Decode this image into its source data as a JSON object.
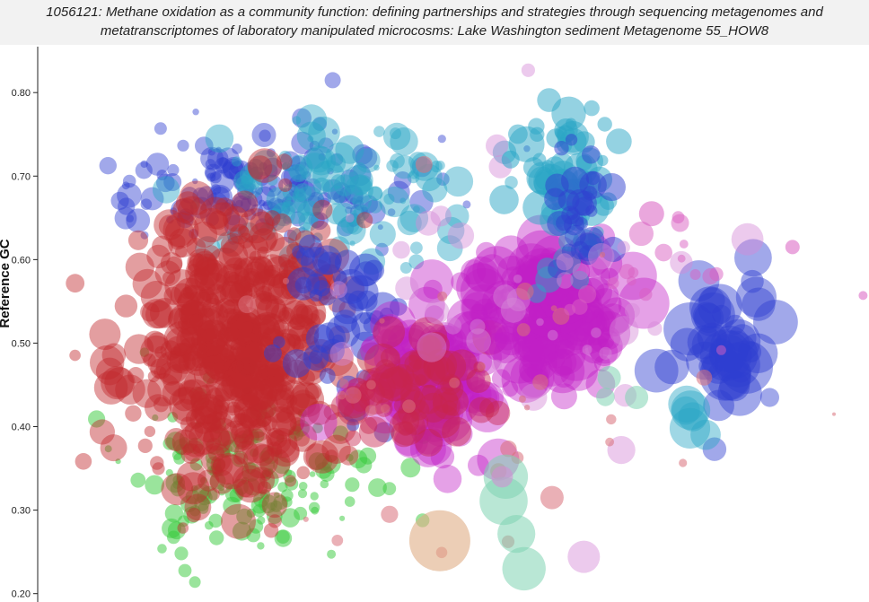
{
  "title": {
    "line1": "1056121: Methane oxidation as a community function: defining partnerships and strategies through sequencing metagenomes and",
    "line2": "metatranscriptomes of laboratory manipulated microcosms: Lake Washington sediment Metagenome 55_HOW8"
  },
  "chart_data": {
    "type": "scatter",
    "title": "1056121: Methane oxidation as a community function: defining partnerships and strategies through sequencing metagenomes and metatranscriptomes of laboratory manipulated microcosms: Lake Washington sediment Metagenome 55_HOW8",
    "xlabel": "",
    "ylabel": "Reference GC",
    "ylim": [
      0.19,
      0.855
    ],
    "yticks": [
      0.2,
      0.3,
      0.4,
      0.5,
      0.6,
      0.7,
      0.8
    ],
    "ytick_labels": [
      "0.20",
      "0.30",
      "0.40",
      "0.50",
      "0.60",
      "0.70",
      "0.80"
    ],
    "xlim": [
      0,
      100
    ],
    "grid": false,
    "colors": {
      "red": "#c0272d",
      "green": "#35c93a",
      "blue": "#2f3fd0",
      "teal": "#2aa6c6",
      "magenta": "#c21fc6",
      "crimson": "#c7264d",
      "pink": "#d58ad6",
      "seafoam": "#7fd4b3",
      "peach": "#e0ad86",
      "rose": "#d8707a",
      "orchid": "#d95fc1"
    },
    "clusters": [
      {
        "color": "green",
        "x": 26,
        "y": 0.34,
        "sx": 7,
        "sy": 0.045,
        "n": 160,
        "r": [
          3,
          11
        ],
        "alpha": 0.5
      },
      {
        "color": "blue",
        "x": 27,
        "y": 0.69,
        "sx": 9,
        "sy": 0.035,
        "n": 170,
        "r": [
          3,
          14
        ],
        "alpha": 0.45
      },
      {
        "color": "teal",
        "x": 36,
        "y": 0.68,
        "sx": 8,
        "sy": 0.04,
        "n": 110,
        "r": [
          3,
          18
        ],
        "alpha": 0.45
      },
      {
        "color": "red",
        "x": 24,
        "y": 0.49,
        "sx": 6.5,
        "sy": 0.085,
        "n": 500,
        "r": [
          6,
          20
        ],
        "alpha": 0.45
      },
      {
        "color": "blue",
        "x": 37,
        "y": 0.53,
        "sx": 3,
        "sy": 0.05,
        "n": 50,
        "r": [
          6,
          20
        ],
        "alpha": 0.5
      },
      {
        "color": "magenta",
        "x": 48,
        "y": 0.455,
        "sx": 5,
        "sy": 0.04,
        "n": 120,
        "r": [
          8,
          28
        ],
        "alpha": 0.42
      },
      {
        "color": "crimson",
        "x": 46,
        "y": 0.45,
        "sx": 4,
        "sy": 0.035,
        "n": 70,
        "r": [
          6,
          22
        ],
        "alpha": 0.45
      },
      {
        "color": "magenta",
        "x": 62,
        "y": 0.53,
        "sx": 5,
        "sy": 0.045,
        "n": 130,
        "r": [
          8,
          30
        ],
        "alpha": 0.42
      },
      {
        "color": "teal",
        "x": 64,
        "y": 0.68,
        "sx": 3,
        "sy": 0.05,
        "n": 70,
        "r": [
          5,
          20
        ],
        "alpha": 0.5
      },
      {
        "color": "blue",
        "x": 65,
        "y": 0.665,
        "sx": 2,
        "sy": 0.035,
        "n": 30,
        "r": [
          6,
          16
        ],
        "alpha": 0.5
      },
      {
        "color": "blue",
        "x": 82,
        "y": 0.5,
        "sx": 3,
        "sy": 0.04,
        "n": 45,
        "r": [
          10,
          30
        ],
        "alpha": 0.45
      },
      {
        "color": "teal",
        "x": 79,
        "y": 0.42,
        "sx": 1,
        "sy": 0.01,
        "n": 6,
        "r": [
          12,
          24
        ],
        "alpha": 0.45
      },
      {
        "color": "pink",
        "x": 60,
        "y": 0.55,
        "sx": 10,
        "sy": 0.08,
        "n": 40,
        "r": [
          4,
          18
        ],
        "alpha": 0.45
      },
      {
        "color": "rose",
        "x": 55,
        "y": 0.45,
        "sx": 14,
        "sy": 0.1,
        "n": 35,
        "r": [
          3,
          10
        ],
        "alpha": 0.55
      },
      {
        "color": "seafoam",
        "x": 57,
        "y": 0.29,
        "sx": 1.2,
        "sy": 0.02,
        "n": 4,
        "r": [
          20,
          30
        ],
        "alpha": 0.55
      },
      {
        "color": "peach",
        "x": 48,
        "y": 0.27,
        "sx": 0.5,
        "sy": 0.01,
        "n": 1,
        "r": [
          34,
          34
        ],
        "alpha": 0.6
      },
      {
        "color": "seafoam",
        "x": 70,
        "y": 0.44,
        "sx": 1,
        "sy": 0.02,
        "n": 3,
        "r": [
          8,
          14
        ],
        "alpha": 0.55
      },
      {
        "color": "orchid",
        "x": 75,
        "y": 0.6,
        "sx": 5,
        "sy": 0.04,
        "n": 18,
        "r": [
          4,
          14
        ],
        "alpha": 0.5
      }
    ],
    "points": [
      {
        "x": 91,
        "y": 0.615,
        "r": 8,
        "color": "orchid"
      },
      {
        "x": 99.5,
        "y": 0.557,
        "r": 5,
        "color": "orchid"
      },
      {
        "x": 62,
        "y": 0.315,
        "r": 13,
        "color": "rose"
      },
      {
        "x": 56,
        "y": 0.34,
        "r": 12,
        "color": "pink"
      },
      {
        "x": 96,
        "y": 0.415,
        "r": 2,
        "color": "rose"
      },
      {
        "x": 74,
        "y": 0.655,
        "r": 14,
        "color": "orchid"
      },
      {
        "x": 57,
        "y": 0.72,
        "r": 10,
        "color": "teal"
      }
    ]
  }
}
